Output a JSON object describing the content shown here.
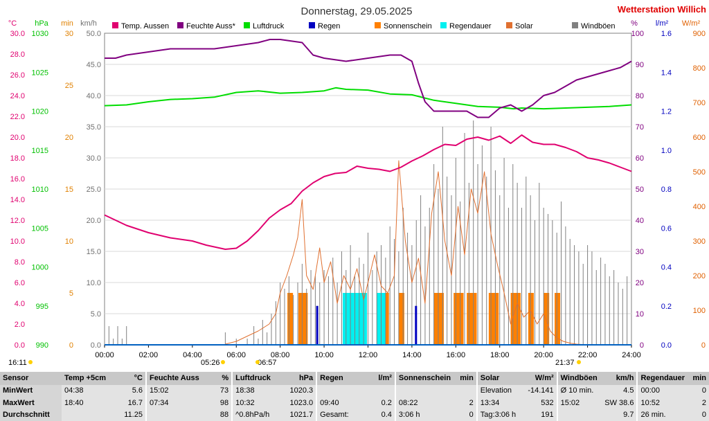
{
  "header": {
    "date_title": "Donnerstag, 29.05.2025",
    "station": "Wetterstation Willich"
  },
  "axes": {
    "left": [
      {
        "unit": "°C",
        "color": "#e0006f",
        "min": 0,
        "max": 30,
        "step": 2,
        "decimals": 1
      },
      {
        "unit": "hPa",
        "color": "#00c000",
        "min": 990,
        "max": 1030,
        "step": 5,
        "decimals": 0
      },
      {
        "unit": "min",
        "color": "#e08000",
        "min": 0,
        "max": 30,
        "step": 5,
        "decimals": 0
      },
      {
        "unit": "km/h",
        "color": "#707070",
        "min": 0,
        "max": 50,
        "step": 5,
        "decimals": 1
      }
    ],
    "right": [
      {
        "unit": "%",
        "color": "#800080",
        "min": 0,
        "max": 100,
        "step": 10,
        "decimals": 0
      },
      {
        "unit": "l/m²",
        "color": "#0000c0",
        "min": 0,
        "max": 1.6,
        "step": 0.2,
        "decimals": 1
      },
      {
        "unit": "W/m²",
        "color": "#e06000",
        "min": 0,
        "max": 900,
        "step": 100,
        "decimals": 0
      }
    ],
    "x_ticks": [
      "00:00",
      "02:00",
      "04:00",
      "06:00",
      "08:00",
      "10:00",
      "12:00",
      "14:00",
      "16:00",
      "18:00",
      "20:00",
      "22:00",
      "24:00"
    ]
  },
  "legend": [
    {
      "label": "Temp. Aussen",
      "color": "#e0006f"
    },
    {
      "label": "Feuchte Auss*",
      "color": "#800080"
    },
    {
      "label": "Luftdruck",
      "color": "#00dd00"
    },
    {
      "label": "Regen",
      "color": "#0000c0"
    },
    {
      "label": "Sonnenschein",
      "color": "#ff8000"
    },
    {
      "label": "Regendauer",
      "color": "#00f0f0"
    },
    {
      "label": "Solar",
      "color": "#e07030"
    },
    {
      "label": "Windböen",
      "color": "#808080"
    }
  ],
  "sun_times": {
    "first": "16:11",
    "sunrise": "05:26",
    "sunrise2": "06:57",
    "sunset": "21:37"
  },
  "chart_data": {
    "type": "line",
    "title": "Donnerstag, 29.05.2025",
    "x_unit": "hours",
    "xlim": [
      0,
      24
    ],
    "series": [
      {
        "name": "Temp. Aussen",
        "unit": "°C",
        "x": [
          0,
          1,
          2,
          3,
          4,
          4.63,
          5.5,
          6,
          6.5,
          7,
          7.5,
          8,
          8.5,
          9,
          9.5,
          10,
          10.5,
          11,
          11.5,
          12,
          12.5,
          13,
          13.5,
          14,
          14.5,
          15,
          15.5,
          16,
          16.5,
          17,
          17.5,
          18,
          18.5,
          19,
          19.5,
          20,
          20.5,
          21,
          21.5,
          22,
          22.5,
          23,
          23.5,
          24
        ],
        "values": [
          12.5,
          11.5,
          10.8,
          10.3,
          10.0,
          9.6,
          9.2,
          9.3,
          10.0,
          11.0,
          12.2,
          13.0,
          13.6,
          14.8,
          15.6,
          16.2,
          16.5,
          16.6,
          17.2,
          17.0,
          16.9,
          16.7,
          17.1,
          17.7,
          18.2,
          18.8,
          19.3,
          19.2,
          19.8,
          20.0,
          19.7,
          20.1,
          19.4,
          20.2,
          19.5,
          19.3,
          19.3,
          19.0,
          18.6,
          18.0,
          17.8,
          17.5,
          17.1,
          16.7
        ]
      },
      {
        "name": "Feuchte Auss*",
        "unit": "%",
        "x": [
          0,
          0.5,
          1,
          2,
          3,
          4,
          5,
          6,
          7,
          7.53,
          8,
          9,
          9.5,
          10,
          11,
          12,
          13,
          13.5,
          14,
          14.3,
          14.6,
          15,
          16,
          16.5,
          17,
          17.5,
          18,
          18.5,
          19,
          19.5,
          20,
          20.5,
          21,
          21.5,
          22,
          22.5,
          23,
          23.5,
          24
        ],
        "values": [
          92,
          92,
          93,
          94,
          95,
          95,
          95,
          96,
          97,
          98,
          98,
          97,
          93,
          92,
          91,
          92,
          93,
          93,
          91,
          84,
          78,
          75,
          75,
          75,
          73,
          73,
          76,
          77,
          75,
          77,
          80,
          81,
          83,
          85,
          86,
          87,
          88,
          89,
          91
        ]
      },
      {
        "name": "Luftdruck",
        "unit": "hPa",
        "x": [
          0,
          1,
          2,
          3,
          4,
          5,
          6,
          7,
          8,
          9,
          10,
          10.53,
          11,
          12,
          13,
          14,
          15,
          16,
          17,
          18,
          18.63,
          19,
          20,
          21,
          22,
          23,
          24
        ],
        "values": [
          1020.7,
          1020.8,
          1021.2,
          1021.5,
          1021.6,
          1021.8,
          1022.4,
          1022.6,
          1022.3,
          1022.4,
          1022.6,
          1023.0,
          1022.8,
          1022.7,
          1022.2,
          1022.1,
          1021.4,
          1021.0,
          1020.6,
          1020.5,
          1020.3,
          1020.4,
          1020.3,
          1020.4,
          1020.5,
          1020.6,
          1020.8
        ]
      },
      {
        "name": "Windböen",
        "unit": "km/h",
        "style": "spikes",
        "x": [
          0.2,
          0.4,
          0.6,
          0.8,
          1.0,
          5.5,
          6.0,
          6.5,
          6.8,
          7.0,
          7.2,
          7.4,
          7.6,
          7.8,
          8.0,
          8.2,
          8.4,
          8.6,
          8.8,
          9.0,
          9.2,
          9.4,
          9.6,
          9.8,
          10.0,
          10.2,
          10.4,
          10.6,
          10.8,
          11.0,
          11.2,
          11.4,
          11.6,
          11.8,
          12.0,
          12.2,
          12.4,
          12.6,
          12.8,
          13.0,
          13.2,
          13.4,
          13.6,
          13.8,
          14.0,
          14.2,
          14.4,
          14.6,
          14.8,
          15.0,
          15.2,
          15.4,
          15.6,
          15.8,
          16.0,
          16.2,
          16.4,
          16.6,
          16.8,
          17.0,
          17.2,
          17.4,
          17.6,
          17.8,
          18.0,
          18.2,
          18.4,
          18.6,
          18.8,
          19.0,
          19.2,
          19.4,
          19.6,
          19.8,
          20.0,
          20.2,
          20.4,
          20.6,
          20.8,
          21.0,
          21.2,
          21.4,
          21.6,
          21.8,
          22.0,
          22.2,
          22.4,
          22.6,
          22.8,
          23.0,
          23.2,
          23.4,
          23.6,
          23.8
        ],
        "values": [
          3,
          1,
          3,
          1,
          3,
          2,
          1,
          1,
          3,
          1,
          4,
          2,
          5,
          7,
          10,
          9,
          11,
          8,
          10,
          13,
          9,
          12,
          11,
          10,
          12,
          11,
          14,
          10,
          15,
          12,
          16,
          11,
          14,
          13,
          18,
          12,
          15,
          16,
          14,
          19,
          17,
          15,
          22,
          18,
          16,
          20,
          24,
          19,
          22,
          29,
          25,
          35,
          27,
          24,
          30,
          23,
          34,
          26,
          36,
          29,
          32,
          27,
          35,
          28,
          24,
          30,
          22,
          29,
          26,
          22,
          27,
          24,
          20,
          26,
          22,
          21,
          20,
          18,
          23,
          19,
          17,
          16,
          15,
          13,
          16,
          15,
          12,
          14,
          13,
          11,
          12,
          10,
          9,
          11
        ]
      },
      {
        "name": "Solar",
        "unit": "W/m²",
        "x": [
          5.5,
          6.0,
          6.5,
          7.0,
          7.5,
          7.8,
          8.0,
          8.3,
          8.6,
          8.8,
          9.0,
          9.2,
          9.5,
          9.8,
          10.0,
          10.3,
          10.6,
          10.9,
          11.2,
          11.5,
          11.8,
          12.0,
          12.3,
          12.6,
          12.9,
          13.2,
          13.4,
          13.7,
          14.0,
          14.3,
          14.6,
          14.9,
          15.2,
          15.5,
          15.8,
          16.1,
          16.4,
          16.7,
          17.0,
          17.3,
          17.6,
          17.9,
          18.2,
          18.5,
          18.8,
          19.1,
          19.4,
          19.7,
          20.0,
          20.3,
          20.6,
          20.9,
          21.2,
          21.5,
          22.0
        ],
        "values": [
          2,
          10,
          25,
          40,
          60,
          90,
          150,
          200,
          260,
          310,
          420,
          200,
          160,
          280,
          180,
          240,
          120,
          200,
          160,
          220,
          130,
          180,
          260,
          170,
          150,
          200,
          532,
          300,
          180,
          250,
          120,
          380,
          500,
          300,
          200,
          400,
          260,
          450,
          380,
          500,
          320,
          230,
          150,
          60,
          120,
          80,
          100,
          60,
          90,
          40,
          20,
          10,
          5,
          2,
          0
        ]
      },
      {
        "name": "Regen",
        "unit": "l/m²",
        "style": "bars",
        "x": [
          9.67,
          14.17
        ],
        "values": [
          0.2,
          0.2
        ]
      },
      {
        "name": "Sonnenschein",
        "unit": "min",
        "style": "blocks",
        "x": [
          8.33,
          8.83,
          9.0,
          12.7,
          13.4,
          15.0,
          15.2,
          15.9,
          16.1,
          16.5,
          16.7,
          17.5,
          17.7,
          18.5,
          18.7,
          19.3,
          20.0,
          20.5
        ],
        "values": [
          5,
          5,
          5,
          5,
          5,
          5,
          5,
          5,
          5,
          5,
          5,
          5,
          5,
          5,
          5,
          5,
          5,
          5
        ]
      },
      {
        "name": "Regendauer",
        "unit": "min",
        "style": "blocks",
        "x": [
          10.85,
          11.1,
          11.3,
          11.5,
          11.7,
          12.4,
          12.55
        ],
        "values": [
          5,
          5,
          5,
          5,
          5,
          5,
          5
        ]
      }
    ]
  },
  "table": {
    "headers": [
      {
        "name": "Sensor",
        "unit": ""
      },
      {
        "name": "Temp +5cm",
        "unit": "°C"
      },
      {
        "name": "Feuchte Auss",
        "unit": "%"
      },
      {
        "name": "Luftdruck",
        "unit": "hPa"
      },
      {
        "name": "Regen",
        "unit": "l/m²"
      },
      {
        "name": "Sonnenschein",
        "unit": "min"
      },
      {
        "name": "Solar",
        "unit": "W/m²"
      },
      {
        "name": "Windböen",
        "unit": "km/h"
      },
      {
        "name": "Regendauer",
        "unit": "min"
      }
    ],
    "rows": [
      {
        "label": "MinWert",
        "cells": [
          [
            "04:38",
            "5.6"
          ],
          [
            "15:02",
            "73"
          ],
          [
            "18:38",
            "1020.3"
          ],
          [
            "",
            ""
          ],
          [
            "",
            ""
          ],
          [
            "Elevation",
            "-14.141"
          ],
          [
            "Ø 10 min.",
            "4.5"
          ],
          [
            "00:00",
            "0"
          ]
        ]
      },
      {
        "label": "MaxWert",
        "cells": [
          [
            "18:40",
            "16.7"
          ],
          [
            "07:34",
            "98"
          ],
          [
            "10:32",
            "1023.0"
          ],
          [
            "09:40",
            "0.2"
          ],
          [
            "08:22",
            "2"
          ],
          [
            "13:34",
            "532"
          ],
          [
            "15:02",
            "SW 38.6"
          ],
          [
            "10:52",
            "2"
          ]
        ]
      },
      {
        "label": "Durchschnitt",
        "cells": [
          [
            "",
            "11.25"
          ],
          [
            "",
            "88"
          ],
          [
            "^0.8hPa/h",
            "1021.7"
          ],
          [
            "Gesamt:",
            "0.4"
          ],
          [
            "3:06 h",
            "0"
          ],
          [
            "Tag:3:06 h",
            "191"
          ],
          [
            "",
            "9.7"
          ],
          [
            "26 min.",
            "0"
          ]
        ]
      }
    ]
  }
}
